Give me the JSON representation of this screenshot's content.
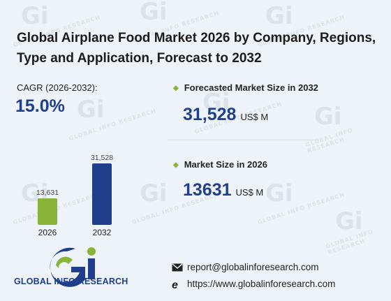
{
  "title": "Global Airplane Food Market 2026 by Company, Regions, Type and Application, Forecast to 2032",
  "cagr": {
    "label": "CAGR (2026-2032):",
    "value": "15.0%"
  },
  "forecast": {
    "label": "Forecasted Market Size in 2032",
    "value": "31,528",
    "unit": "US$ M"
  },
  "current": {
    "label": "Market Size in 2026",
    "value": "13631",
    "unit": "US$ M"
  },
  "contact": {
    "email": "report@globalinforesearch.com",
    "website": "https://www.globalinforesearch.com"
  },
  "brand": {
    "name": "GLOBAL INFO RESEARCH",
    "watermark": "GLOBAL INFO RESEARCH"
  },
  "icons": {
    "email": "envelope-icon",
    "website": "globe-e-icon",
    "bullet": "diamond-bullet-icon"
  },
  "colors": {
    "accent": "#1f3e8c",
    "bar_2026": "#8ab33a",
    "bar_2032": "#1f3e8c",
    "bullet": "#8ab33a"
  },
  "chart_data": {
    "type": "bar",
    "categories": [
      "2026",
      "2032"
    ],
    "values": [
      13631,
      31528
    ],
    "value_labels": [
      "13,631",
      "31,528"
    ],
    "ylim": [
      0,
      31528
    ],
    "grid": false,
    "legend": "none"
  }
}
